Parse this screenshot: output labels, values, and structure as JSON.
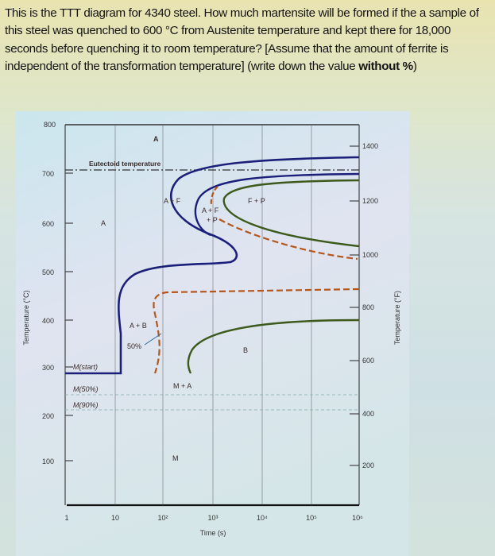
{
  "question": {
    "text_main": "This is the TTT diagram for 4340 steel. How much martensite will be formed if the a sample of this steel was quenched to 600 °C from Austenite temperature and kept there for 18,000 seconds before quenching it to room temperature? [Assume that the amount of ferrite is independent of the transformation temperature] (write down the value ",
    "text_bold": "without %",
    "text_end": ")"
  },
  "diagram": {
    "left_axis_label": "Temperature (°C)",
    "right_axis_label": "Temperature (°F)",
    "x_axis_label": "Time (s)",
    "left_ticks": [
      "800",
      "700",
      "600",
      "500",
      "400",
      "300",
      "200",
      "100"
    ],
    "right_ticks": [
      "1400",
      "1200",
      "1000",
      "800",
      "600",
      "400",
      "200"
    ],
    "x_ticks": [
      "1",
      "10",
      "10²",
      "10³",
      "10⁴",
      "10⁵",
      "10⁶"
    ],
    "regions": {
      "a_top": "A",
      "eutectoid": "Eutectoid temperature",
      "a_f": "A + F",
      "a_f_p1": "A + F",
      "a_f_p2": "+ P",
      "f_p": "F + P",
      "a_mid": "A",
      "a_b": "A + B",
      "fifty": "50%",
      "b": "B",
      "m_a": "M + A",
      "m_start": "M(start)",
      "m_50": "M(50%)",
      "m_90": "M(90%)",
      "m": "M"
    },
    "colors": {
      "start_curve": "#1c1f7a",
      "finish_curve": "#3d5a1c",
      "fifty_curve": "#b5561c"
    }
  }
}
